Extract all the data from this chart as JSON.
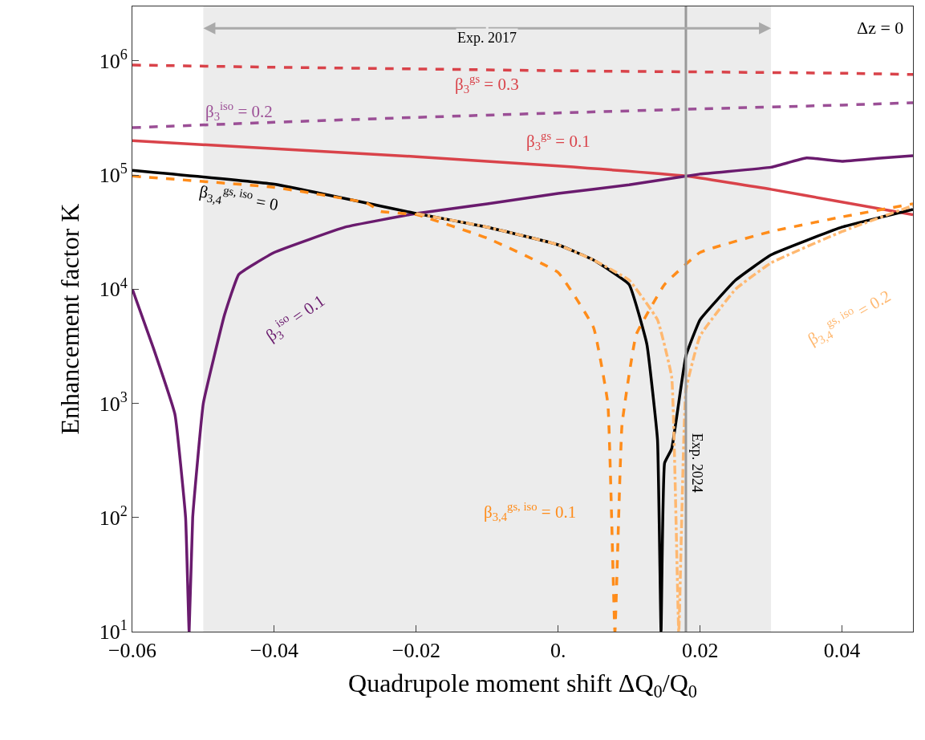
{
  "chart_data": {
    "type": "line",
    "xlabel": "Quadrupole moment shift ΔQ$_{0}$/Q$_{0}$",
    "ylabel": "Enhancement factor K",
    "log": "y",
    "grid": false,
    "legend": false,
    "marker": "none",
    "xlim": [
      -0.06,
      0.05
    ],
    "xticks": [
      {
        "value": -0.06,
        "label": "−0.06"
      },
      {
        "value": -0.04,
        "label": "−0.04"
      },
      {
        "value": -0.02,
        "label": "−0.02"
      },
      {
        "value": 0,
        "label": "0."
      },
      {
        "value": 0.02,
        "label": "0.02"
      },
      {
        "value": 0.04,
        "label": "0.04"
      }
    ],
    "ylim": [
      10,
      3000000
    ],
    "yticks": [
      {
        "value": 10,
        "label": "10$^{1}$"
      },
      {
        "value": 100,
        "label": "10$^{2}$"
      },
      {
        "value": 1000,
        "label": "10$^{3}$"
      },
      {
        "value": 10000,
        "label": "10$^{4}$"
      },
      {
        "value": 100000,
        "label": "10$^{5}$"
      },
      {
        "value": 1000000,
        "label": "10$^{6}$"
      }
    ],
    "bands": [
      {
        "axis": "x",
        "from": -0.05,
        "to": 0.03,
        "label": "Exp. 2017",
        "color": "#ececec"
      }
    ],
    "ref_lines": [
      {
        "axis": "x",
        "value": 0.018,
        "label": "Exp. 2024",
        "color": "#999999"
      }
    ],
    "annotations": [
      "Δz = 0"
    ],
    "series": [
      {
        "name": "β$_{3}$$^{gs}$ = 0.3",
        "color": "#d9434a",
        "line_style": "dashed",
        "x": [
          -0.06,
          -0.04,
          -0.02,
          0,
          0.02,
          0.04,
          0.05
        ],
        "values": [
          920000,
          880000,
          850000,
          820000,
          800000,
          780000,
          760000
        ]
      },
      {
        "name": "β$_{3}$$^{iso}$ = 0.2",
        "color": "#9b4f96",
        "line_style": "dashed",
        "x": [
          -0.06,
          -0.04,
          -0.02,
          0,
          0.02,
          0.04,
          0.05
        ],
        "values": [
          260000,
          290000,
          320000,
          350000,
          380000,
          410000,
          430000
        ]
      },
      {
        "name": "β$_{3}$$^{gs}$ = 0.1",
        "color": "#d9434a",
        "line_style": "solid",
        "x": [
          -0.06,
          -0.04,
          -0.02,
          0,
          0.018,
          0.03,
          0.04,
          0.05
        ],
        "values": [
          200000,
          170000,
          145000,
          120000,
          98000,
          75000,
          58000,
          45000
        ]
      },
      {
        "name": "β$_{3}$$^{iso}$ = 0.1",
        "color": "#6a1b6e",
        "line_style": "solid",
        "x": [
          -0.06,
          -0.057,
          -0.054,
          -0.0525,
          -0.052,
          -0.0515,
          -0.05,
          -0.047,
          -0.045,
          -0.04,
          -0.03,
          -0.02,
          -0.01,
          0,
          0.01,
          0.02,
          0.03,
          0.035,
          0.04,
          0.045,
          0.05
        ],
        "values": [
          10000,
          3000,
          800,
          100,
          10,
          100,
          1000,
          6000,
          13500,
          21000,
          35000,
          46000,
          56000,
          69000,
          82000,
          102000,
          117000,
          141000,
          132000,
          140000,
          148000
        ]
      },
      {
        "name": "β$_{3,4}$$^{gs, iso}$ = 0",
        "color": "#000000",
        "line_style": "solid",
        "x": [
          -0.06,
          -0.04,
          -0.02,
          -0.01,
          0,
          0.005,
          0.01,
          0.0125,
          0.014,
          0.0145,
          0.015,
          0.016,
          0.018,
          0.02,
          0.025,
          0.03,
          0.04,
          0.05
        ],
        "values": [
          110000,
          83000,
          46000,
          35000,
          24500,
          18000,
          11000,
          3300,
          480,
          10,
          300,
          400,
          2600,
          5400,
          12000,
          20000,
          35000,
          50000
        ]
      },
      {
        "name": "β$_{3,4}$$^{gs, iso}$ = 0.1",
        "color": "#ff8c1a",
        "line_style": "dashed",
        "x": [
          -0.06,
          -0.04,
          -0.027,
          -0.025,
          -0.02,
          -0.01,
          0,
          0.005,
          0.007,
          0.008,
          0.009,
          0.011,
          0.015,
          0.02,
          0.03,
          0.04,
          0.05
        ],
        "values": [
          98000,
          78000,
          57000,
          48000,
          45000,
          28000,
          14000,
          4600,
          1000,
          10,
          650,
          4000,
          11000,
          21000,
          32000,
          43000,
          56000
        ]
      },
      {
        "name": "β$_{3,4}$$^{gs, iso}$ = 0.2",
        "color": "#ffb870",
        "line_style": "dashdot",
        "x": [
          -0.02,
          -0.01,
          0,
          0.005,
          0.01,
          0.014,
          0.016,
          0.017,
          0.018,
          0.02,
          0.025,
          0.03,
          0.04,
          0.05
        ],
        "values": [
          46000,
          35000,
          24500,
          18000,
          12000,
          5400,
          1700,
          10,
          1300,
          3900,
          10000,
          17000,
          32000,
          54000
        ]
      }
    ]
  }
}
